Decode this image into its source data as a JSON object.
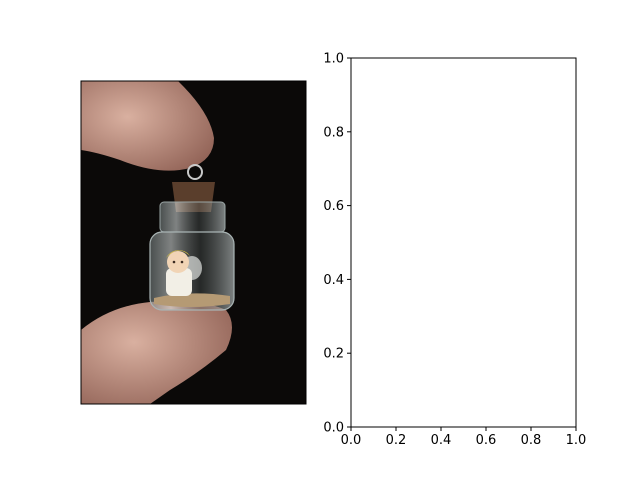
{
  "figure": {
    "background": "#ffffff",
    "photo": {
      "subject": "glass-bottle-pendant-with-angel-figure-held-between-fingers",
      "palette": {
        "backdrop": "#0b0908",
        "skin": "#c89a8a",
        "skin_shadow": "#8e5f53",
        "cork": "#5a3e2c",
        "glass": "#a9b4b4",
        "figure_hair": "#e8cc3a",
        "figure_body": "#f2efe6",
        "sand": "#b59a74"
      }
    }
  },
  "chart_data": {
    "type": "scatter",
    "series": [],
    "xlim": [
      0,
      1
    ],
    "ylim": [
      0,
      1
    ],
    "xticks": [
      "0.0",
      "0.2",
      "0.4",
      "0.6",
      "0.8",
      "1.0"
    ],
    "yticks": [
      "0.0",
      "0.2",
      "0.4",
      "0.6",
      "0.8",
      "1.0"
    ],
    "grid": false,
    "title": "",
    "xlabel": "",
    "ylabel": ""
  }
}
